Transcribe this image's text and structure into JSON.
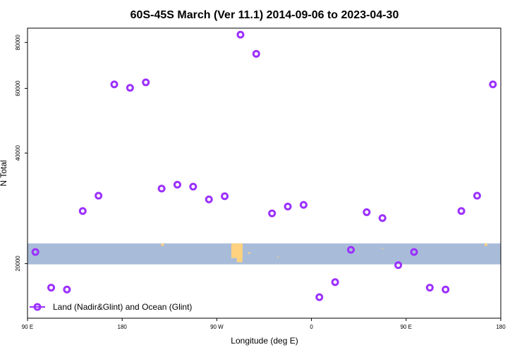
{
  "chart_data": {
    "type": "scatter",
    "title": "60S-45S March (Ver 11.1)   2014-09-06 to 2023-04-30",
    "xlabel": "Longitude (deg E)",
    "ylabel": "N Total",
    "xlim": [
      -90,
      180
    ],
    "ylim": [
      14200,
      87500
    ],
    "y_scale": "log",
    "x_ticks": [
      {
        "value": -90,
        "label": "90 E"
      },
      {
        "value": -36,
        "label": "180"
      },
      {
        "value": 18,
        "label": "90 W"
      },
      {
        "value": 72,
        "label": "0"
      },
      {
        "value": 126,
        "label": "90 E"
      },
      {
        "value": 180,
        "label": "180"
      }
    ],
    "y_ticks": [
      {
        "value": 20000,
        "label": "20000"
      },
      {
        "value": 40000,
        "label": "40000"
      },
      {
        "value": 60000,
        "label": "60000"
      },
      {
        "value": 80000,
        "label": "80000"
      }
    ],
    "grid": false,
    "legend_position": "bottom-left",
    "colors": {
      "series": "#9b30ff",
      "land_band": "#a8bcd9",
      "land": "#ffd27f"
    },
    "series": [
      {
        "name": "Land (Nadir&Glint) and Ocean (Glint)",
        "x": [
          -85.5,
          -76.5,
          -67.5,
          -58.5,
          -49.5,
          -40.5,
          -31.5,
          -22.5,
          -13.5,
          -4.5,
          4.5,
          13.5,
          22.5,
          31.5,
          40.5,
          49.5,
          58.5,
          67.5,
          76.5,
          85.5,
          94.5,
          103.5,
          112.5,
          121.5,
          130.5,
          139.5,
          148.5,
          157.5,
          166.5,
          175.5
        ],
        "y": [
          21500,
          17200,
          17000,
          27800,
          30600,
          61500,
          60200,
          62300,
          32000,
          32800,
          32400,
          29900,
          30500,
          84000,
          74500,
          27400,
          28600,
          28900,
          16200,
          17800,
          21800,
          27600,
          26600,
          19800,
          21500,
          17200,
          17000,
          27800,
          30600,
          61500
        ]
      }
    ],
    "background_bands": [
      {
        "name": "Land",
        "y_range": [
          19900,
          22700
        ]
      }
    ]
  }
}
